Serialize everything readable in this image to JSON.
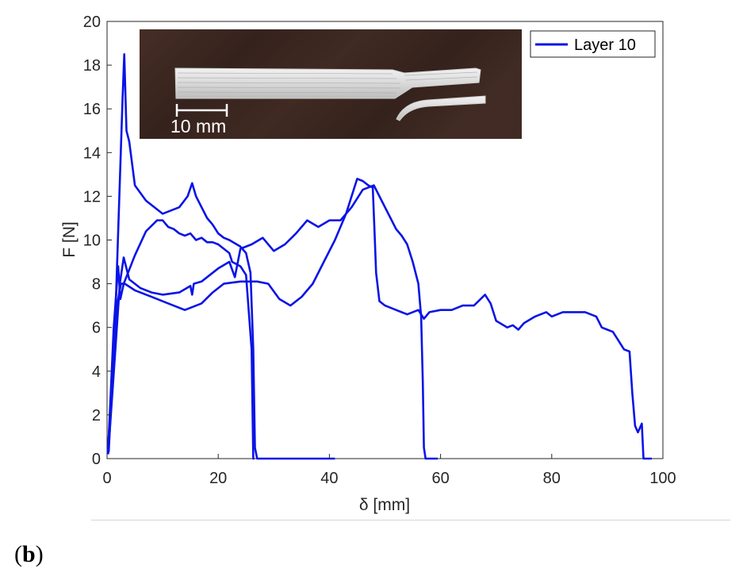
{
  "chart_data": {
    "type": "line",
    "xlabel": "δ [mm]",
    "ylabel": "F [N]",
    "xlim": [
      0,
      100
    ],
    "ylim": [
      0,
      20
    ],
    "xticks": [
      0,
      20,
      40,
      60,
      80,
      100
    ],
    "yticks": [
      0,
      2,
      4,
      6,
      8,
      10,
      12,
      14,
      16,
      18,
      20
    ],
    "grid": false,
    "legend": {
      "position": "top-right",
      "entries": [
        "Layer 10"
      ]
    },
    "color": "#0a14e6",
    "inset": {
      "scale_bar_label": "10 mm"
    },
    "series": [
      {
        "name": "Layer 10",
        "points": [
          [
            0.3,
            0.3
          ],
          [
            1.5,
            6.5
          ],
          [
            2.8,
            16.5
          ],
          [
            3.1,
            18.5
          ],
          [
            3.5,
            15.0
          ],
          [
            4.0,
            14.5
          ],
          [
            5,
            12.5
          ],
          [
            7,
            11.8
          ],
          [
            10,
            11.2
          ],
          [
            13,
            11.5
          ],
          [
            14.5,
            12.0
          ],
          [
            15.3,
            12.6
          ],
          [
            16,
            12.0
          ],
          [
            17,
            11.5
          ],
          [
            18,
            11.0
          ],
          [
            19,
            10.7
          ],
          [
            20,
            10.3
          ],
          [
            21,
            10.1
          ],
          [
            22,
            10.0
          ],
          [
            24,
            9.7
          ],
          [
            25,
            9.4
          ],
          [
            25.8,
            8.5
          ],
          [
            26.3,
            5.0
          ],
          [
            26.6,
            0.5
          ],
          [
            27,
            0
          ],
          [
            33,
            0
          ],
          [
            40,
            0
          ],
          [
            41,
            0
          ]
        ]
      },
      {
        "name": "Layer 10",
        "points": [
          [
            0.2,
            0.4
          ],
          [
            1.2,
            6.0
          ],
          [
            2.0,
            8.8
          ],
          [
            2.4,
            7.3
          ],
          [
            3.0,
            8.0
          ],
          [
            5,
            9.3
          ],
          [
            7,
            10.4
          ],
          [
            9,
            10.9
          ],
          [
            10,
            10.9
          ],
          [
            11,
            10.6
          ],
          [
            12,
            10.5
          ],
          [
            13,
            10.3
          ],
          [
            14,
            10.2
          ],
          [
            15,
            10.3
          ],
          [
            16,
            10.0
          ],
          [
            17,
            10.1
          ],
          [
            18,
            9.9
          ],
          [
            19,
            9.9
          ],
          [
            20,
            9.8
          ],
          [
            21,
            9.6
          ],
          [
            22,
            9.4
          ],
          [
            22.5,
            9.0
          ],
          [
            24,
            8.8
          ],
          [
            25,
            8.4
          ],
          [
            26,
            5.0
          ],
          [
            26.3,
            0
          ],
          [
            26.5,
            0
          ]
        ]
      },
      {
        "name": "Layer 10",
        "points": [
          [
            0.2,
            0.2
          ],
          [
            1.5,
            5.0
          ],
          [
            2.3,
            8.0
          ],
          [
            3.0,
            9.2
          ],
          [
            4,
            8.2
          ],
          [
            6,
            7.8
          ],
          [
            8,
            7.6
          ],
          [
            10,
            7.5
          ],
          [
            13,
            7.6
          ],
          [
            15,
            7.9
          ],
          [
            15.3,
            7.5
          ],
          [
            15.6,
            8.0
          ],
          [
            17,
            8.1
          ],
          [
            18,
            8.3
          ],
          [
            20,
            8.7
          ],
          [
            22,
            9.0
          ],
          [
            23,
            8.3
          ],
          [
            24,
            9.6
          ],
          [
            26,
            9.8
          ],
          [
            28,
            10.1
          ],
          [
            30,
            9.5
          ],
          [
            32,
            9.8
          ],
          [
            34,
            10.3
          ],
          [
            36,
            10.9
          ],
          [
            38,
            10.6
          ],
          [
            40,
            10.9
          ],
          [
            42,
            10.9
          ],
          [
            44,
            11.5
          ],
          [
            46,
            12.3
          ],
          [
            48,
            12.5
          ],
          [
            49,
            12.0
          ],
          [
            50,
            11.5
          ],
          [
            51,
            11.0
          ],
          [
            52,
            10.5
          ],
          [
            53,
            10.2
          ],
          [
            54,
            9.8
          ],
          [
            55,
            9.0
          ],
          [
            56,
            8.0
          ],
          [
            56.5,
            6.5
          ],
          [
            56.8,
            3.5
          ],
          [
            57,
            0.5
          ],
          [
            57.3,
            0
          ],
          [
            59,
            0
          ],
          [
            59.5,
            0
          ]
        ]
      },
      {
        "name": "Layer 10",
        "points": [
          [
            0.1,
            0.2
          ],
          [
            1.8,
            7.0
          ],
          [
            2.5,
            8.0
          ],
          [
            3.2,
            8.0
          ],
          [
            5,
            7.7
          ],
          [
            8,
            7.4
          ],
          [
            11,
            7.1
          ],
          [
            13,
            6.9
          ],
          [
            14,
            6.8
          ],
          [
            17,
            7.1
          ],
          [
            19,
            7.6
          ],
          [
            21,
            8.0
          ],
          [
            24,
            8.1
          ],
          [
            27,
            8.1
          ],
          [
            29,
            8.0
          ],
          [
            31,
            7.3
          ],
          [
            33,
            7.0
          ],
          [
            35,
            7.4
          ],
          [
            37,
            8.0
          ],
          [
            39,
            9.0
          ],
          [
            41,
            10.0
          ],
          [
            43,
            11.2
          ],
          [
            45,
            12.8
          ],
          [
            46,
            12.7
          ],
          [
            47,
            12.5
          ],
          [
            47.8,
            12.4
          ],
          [
            48.1,
            10.5
          ],
          [
            48.4,
            8.5
          ],
          [
            49,
            7.2
          ],
          [
            50,
            7.0
          ],
          [
            52,
            6.8
          ],
          [
            54,
            6.6
          ],
          [
            56,
            6.8
          ],
          [
            57,
            6.4
          ],
          [
            58,
            6.7
          ],
          [
            60,
            6.8
          ],
          [
            62,
            6.8
          ],
          [
            64,
            7.0
          ],
          [
            66,
            7.0
          ],
          [
            68,
            7.5
          ],
          [
            69,
            7.1
          ],
          [
            70,
            6.3
          ],
          [
            72,
            6.0
          ],
          [
            73,
            6.1
          ],
          [
            74,
            5.9
          ],
          [
            75,
            6.2
          ],
          [
            77,
            6.5
          ],
          [
            79,
            6.7
          ],
          [
            80,
            6.5
          ],
          [
            82,
            6.7
          ],
          [
            84,
            6.7
          ],
          [
            86,
            6.7
          ],
          [
            88,
            6.5
          ],
          [
            89,
            6.0
          ],
          [
            90,
            5.9
          ],
          [
            91,
            5.8
          ],
          [
            92,
            5.4
          ],
          [
            93,
            5.0
          ],
          [
            94,
            4.9
          ],
          [
            94.5,
            3.0
          ],
          [
            95,
            1.5
          ],
          [
            95.5,
            1.2
          ],
          [
            96.2,
            1.6
          ],
          [
            96.5,
            0
          ],
          [
            97,
            0
          ],
          [
            98,
            0
          ]
        ]
      }
    ]
  },
  "panel_label": "b"
}
